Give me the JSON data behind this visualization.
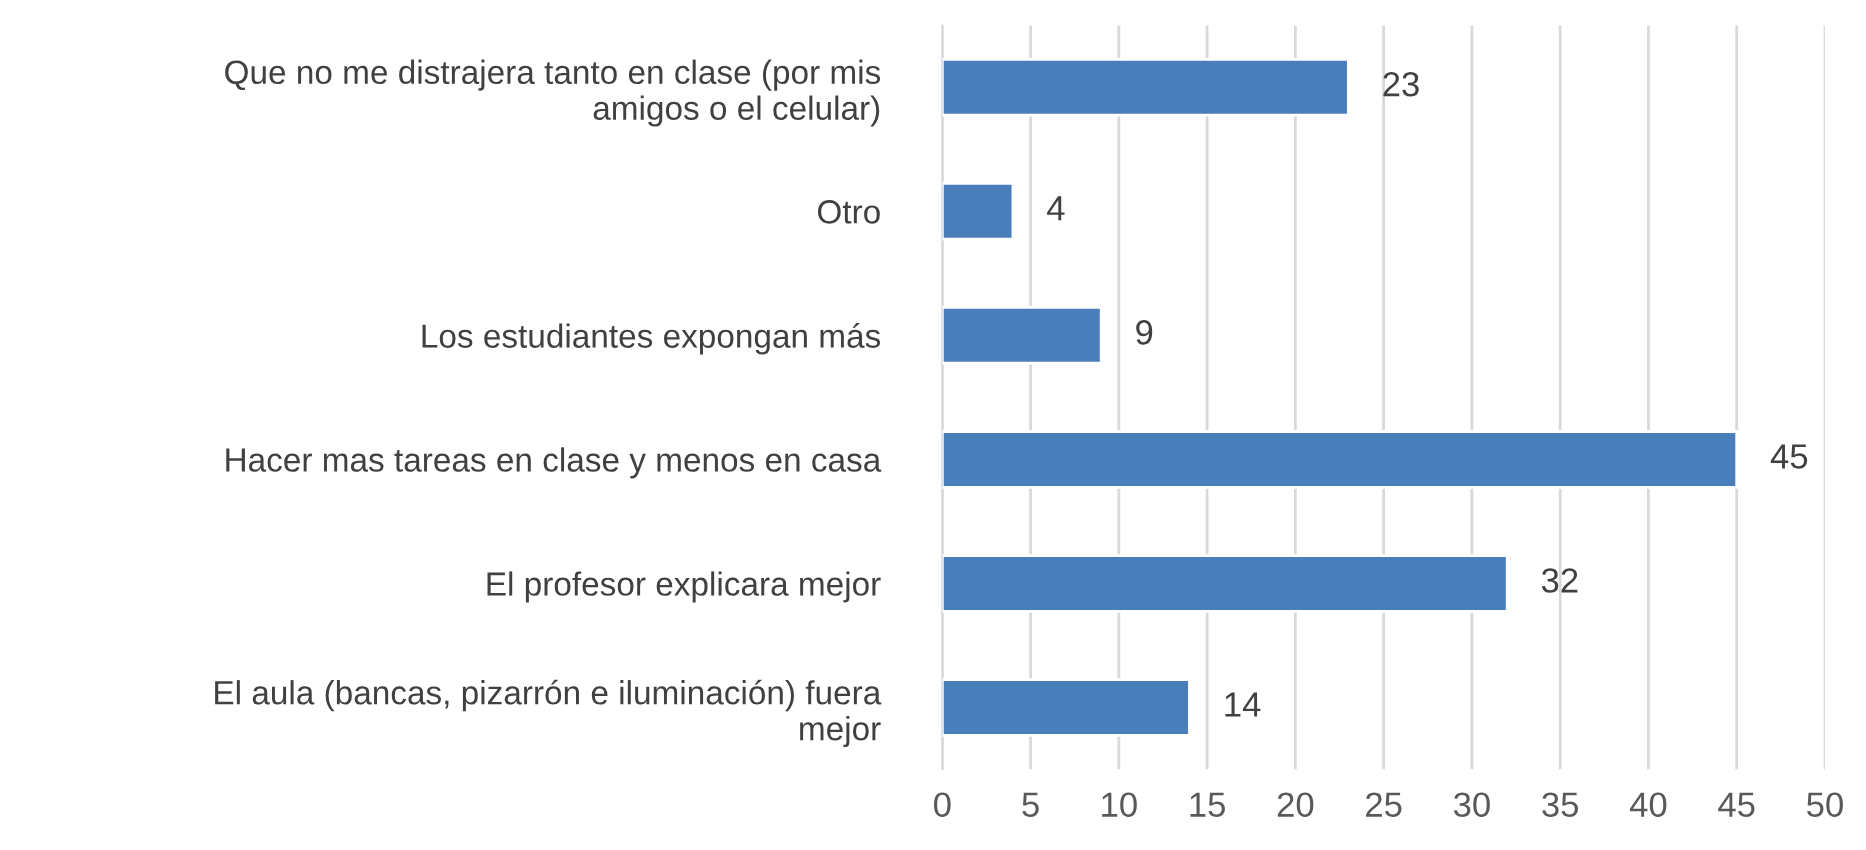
{
  "chart_data": {
    "type": "bar",
    "orientation": "horizontal",
    "categories": [
      "Que no me distrajera tanto en clase (por mis amigos o el celular)",
      "Otro",
      "Los estudiantes expongan más",
      "Hacer mas tareas en clase y menos en casa",
      "El profesor explicara mejor",
      "El aula (bancas, pizarrón e iluminación) fuera mejor"
    ],
    "values": [
      23,
      4,
      9,
      45,
      32,
      14
    ],
    "color": "#4a7ebb",
    "xlim": [
      0,
      50
    ],
    "xticks": [
      0,
      5,
      10,
      15,
      20,
      25,
      30,
      35,
      40,
      45,
      50
    ],
    "grid": "x",
    "data_labels": true
  }
}
